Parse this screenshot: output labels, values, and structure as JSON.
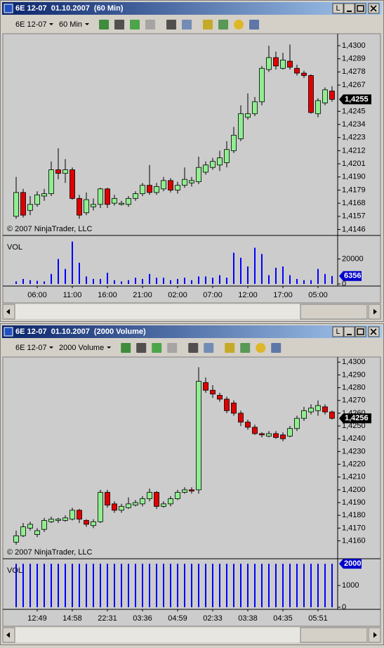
{
  "windows": [
    {
      "title": "6E 12-07  01.10.2007  (60 Min)",
      "lock_button": "L",
      "instrument": "6E 12-07",
      "period": "60 Min",
      "copyright": "© 2007 NinjaTrader, LLC",
      "vol_label": "VOL"
    },
    {
      "title": "6E 12-07  01.10.2007  (2000 Volume)",
      "lock_button": "L",
      "instrument": "6E 12-07",
      "period": "2000 Volume",
      "copyright": "© 2007 NinjaTrader, LLC",
      "vol_label": "VOL"
    }
  ],
  "chart_data": [
    {
      "type": "candlestick",
      "up_color": "#90ee90",
      "down_color": "#e00000",
      "open": [
        1.4157,
        1.4177,
        1.4162,
        1.4167,
        1.4174,
        1.4176,
        1.4196,
        1.4193,
        1.4196,
        1.4172,
        1.416,
        1.4165,
        1.4167,
        1.418,
        1.4168,
        1.4167,
        1.4167,
        1.4172,
        1.4176,
        1.4183,
        1.4177,
        1.418,
        1.4187,
        1.4179,
        1.4183,
        1.4185,
        1.4186,
        1.4194,
        1.4198,
        1.42,
        1.4202,
        1.4212,
        1.4222,
        1.424,
        1.4243,
        1.4253,
        1.428,
        1.429,
        1.4281,
        1.4287,
        1.4281,
        1.4277,
        1.4275,
        1.4243,
        1.4252,
        1.4262
      ],
      "high": [
        1.419,
        1.418,
        1.4174,
        1.4178,
        1.418,
        1.4203,
        1.4214,
        1.4205,
        1.4198,
        1.4175,
        1.4177,
        1.4172,
        1.4181,
        1.4181,
        1.4175,
        1.417,
        1.4174,
        1.4178,
        1.4185,
        1.42,
        1.4185,
        1.419,
        1.4189,
        1.4186,
        1.4198,
        1.419,
        1.4207,
        1.4203,
        1.4206,
        1.4212,
        1.422,
        1.4232,
        1.425,
        1.426,
        1.4257,
        1.4283,
        1.43,
        1.4295,
        1.4294,
        1.4301,
        1.4284,
        1.4279,
        1.4276,
        1.4256,
        1.4265,
        1.4266
      ],
      "low": [
        1.4155,
        1.4156,
        1.4158,
        1.4165,
        1.417,
        1.4174,
        1.4188,
        1.4185,
        1.4171,
        1.4155,
        1.4158,
        1.4162,
        1.4164,
        1.4164,
        1.4166,
        1.4166,
        1.4165,
        1.417,
        1.4174,
        1.4175,
        1.4175,
        1.4178,
        1.4177,
        1.4176,
        1.4181,
        1.4182,
        1.4184,
        1.4192,
        1.4196,
        1.4195,
        1.4198,
        1.421,
        1.422,
        1.4238,
        1.4241,
        1.425,
        1.4278,
        1.428,
        1.428,
        1.428,
        1.4275,
        1.4273,
        1.4243,
        1.424,
        1.425,
        1.4253
      ],
      "close": [
        1.4177,
        1.4158,
        1.4167,
        1.4175,
        1.4176,
        1.4196,
        1.4193,
        1.4196,
        1.4172,
        1.4158,
        1.4171,
        1.4167,
        1.418,
        1.4167,
        1.4172,
        1.4168,
        1.4172,
        1.4176,
        1.4183,
        1.4177,
        1.4182,
        1.4187,
        1.4179,
        1.4183,
        1.4188,
        1.4187,
        1.4198,
        1.42,
        1.4203,
        1.4206,
        1.4213,
        1.4225,
        1.4243,
        1.4243,
        1.4253,
        1.4281,
        1.429,
        1.4283,
        1.4288,
        1.4282,
        1.4277,
        1.4275,
        1.4244,
        1.4254,
        1.4263,
        1.4255
      ],
      "last_label": "1,4255",
      "ylim": [
        1.4141,
        1.431
      ],
      "yticks": [
        {
          "value": 1.4146,
          "label": "1,4146"
        },
        {
          "value": 1.4157,
          "label": "1,4157"
        },
        {
          "value": 1.4168,
          "label": "1,4168"
        },
        {
          "value": 1.4179,
          "label": "1,4179"
        },
        {
          "value": 1.419,
          "label": "1,4190"
        },
        {
          "value": 1.4201,
          "label": "1,4201"
        },
        {
          "value": 1.4212,
          "label": "1,4212"
        },
        {
          "value": 1.4223,
          "label": "1,4223"
        },
        {
          "value": 1.4234,
          "label": "1,4234"
        },
        {
          "value": 1.4245,
          "label": "1,4245"
        },
        {
          "value": 1.4267,
          "label": "1,4267"
        },
        {
          "value": 1.4278,
          "label": "1,4278"
        },
        {
          "value": 1.4289,
          "label": "1,4289"
        },
        {
          "value": 1.43,
          "label": "1,4300"
        }
      ]
    },
    {
      "type": "bar",
      "color": "#0000ff",
      "categories": [
        null,
        null,
        null,
        "06:00",
        null,
        null,
        null,
        null,
        "11:00",
        null,
        null,
        null,
        null,
        "16:00",
        null,
        null,
        null,
        null,
        "21:00",
        null,
        null,
        null,
        null,
        "02:00",
        null,
        null,
        null,
        null,
        "07:00",
        null,
        null,
        null,
        null,
        "12:00",
        null,
        null,
        null,
        null,
        "17:00",
        null,
        null,
        null,
        null,
        "05:00",
        null,
        null
      ],
      "values": [
        2000,
        4000,
        3000,
        2500,
        2000,
        8000,
        20000,
        12000,
        34000,
        17000,
        6000,
        4000,
        4000,
        9000,
        3000,
        2000,
        3000,
        5000,
        4000,
        8000,
        5000,
        5000,
        3000,
        4000,
        5000,
        3000,
        6000,
        6000,
        5000,
        7000,
        5000,
        25000,
        21000,
        14000,
        29000,
        24000,
        7000,
        13000,
        14000,
        7000,
        4000,
        3000,
        3000,
        12000,
        8000,
        6356
      ],
      "ylim": [
        0,
        38300
      ],
      "yticks": [
        0,
        20000
      ]
    },
    {
      "type": "candlestick",
      "up_color": "#90ee90",
      "down_color": "#e00000",
      "open": [
        1.4159,
        1.4164,
        1.417,
        1.4165,
        1.4169,
        1.4175,
        1.4176,
        1.4176,
        1.4177,
        1.4184,
        1.4176,
        1.4172,
        1.4175,
        1.4198,
        1.4189,
        1.4184,
        1.4186,
        1.4188,
        1.4189,
        1.4193,
        1.4198,
        1.4187,
        1.4189,
        1.4193,
        1.4198,
        1.42,
        1.42,
        1.4284,
        1.4278,
        1.4274,
        1.4271,
        1.4268,
        1.426,
        1.4253,
        1.4249,
        1.4244,
        1.4242,
        1.4244,
        1.4243,
        1.4242,
        1.4248,
        1.4256,
        1.4261,
        1.4262,
        1.4265,
        1.4261
      ],
      "high": [
        1.4168,
        1.4174,
        1.4175,
        1.417,
        1.4178,
        1.4179,
        1.4178,
        1.418,
        1.4186,
        1.4185,
        1.4177,
        1.4177,
        1.42,
        1.42,
        1.4191,
        1.4189,
        1.4194,
        1.4192,
        1.4195,
        1.4201,
        1.4199,
        1.4191,
        1.4195,
        1.42,
        1.4202,
        1.4202,
        1.4296,
        1.4288,
        1.4282,
        1.4276,
        1.4273,
        1.427,
        1.4262,
        1.4255,
        1.4251,
        1.4245,
        1.4246,
        1.4246,
        1.4245,
        1.425,
        1.4258,
        1.4265,
        1.4267,
        1.427,
        1.4267,
        1.4262
      ],
      "low": [
        1.4157,
        1.4163,
        1.4168,
        1.4163,
        1.4167,
        1.4174,
        1.4174,
        1.4175,
        1.4176,
        1.4174,
        1.4171,
        1.417,
        1.4174,
        1.4186,
        1.4182,
        1.4182,
        1.4185,
        1.4187,
        1.4187,
        1.4191,
        1.4185,
        1.4186,
        1.4187,
        1.4192,
        1.4197,
        1.4197,
        1.4197,
        1.4276,
        1.4272,
        1.4269,
        1.426,
        1.4258,
        1.425,
        1.4247,
        1.4243,
        1.4241,
        1.4241,
        1.424,
        1.4238,
        1.4241,
        1.4246,
        1.4254,
        1.4259,
        1.4258,
        1.4259,
        1.4255
      ],
      "close": [
        1.4164,
        1.4171,
        1.4173,
        1.4168,
        1.4176,
        1.4177,
        1.4177,
        1.4178,
        1.4184,
        1.4177,
        1.4173,
        1.4175,
        1.4198,
        1.4188,
        1.4184,
        1.4187,
        1.4189,
        1.419,
        1.4193,
        1.4198,
        1.4187,
        1.4189,
        1.4193,
        1.4198,
        1.42,
        1.4199,
        1.4285,
        1.4278,
        1.4275,
        1.4271,
        1.4262,
        1.426,
        1.4253,
        1.4249,
        1.4244,
        1.4243,
        1.4244,
        1.4241,
        1.424,
        1.4248,
        1.4256,
        1.4262,
        1.4264,
        1.4266,
        1.4261,
        1.4256
      ],
      "last_label": "1,4256",
      "ylim": [
        1.4146,
        1.4304
      ],
      "yticks": [
        {
          "value": 1.416,
          "label": "1,4160"
        },
        {
          "value": 1.417,
          "label": "1,4170"
        },
        {
          "value": 1.418,
          "label": "1,4180"
        },
        {
          "value": 1.419,
          "label": "1,4190"
        },
        {
          "value": 1.42,
          "label": "1,4200"
        },
        {
          "value": 1.421,
          "label": "1,4210"
        },
        {
          "value": 1.422,
          "label": "1,4220"
        },
        {
          "value": 1.423,
          "label": "1,4230"
        },
        {
          "value": 1.424,
          "label": "1,4240"
        },
        {
          "value": 1.425,
          "label": "1,4250"
        },
        {
          "value": 1.426,
          "label": "1,4260"
        },
        {
          "value": 1.427,
          "label": "1,4270"
        },
        {
          "value": 1.428,
          "label": "1,4280"
        },
        {
          "value": 1.429,
          "label": "1,4290"
        },
        {
          "value": 1.43,
          "label": "1,4300"
        }
      ]
    },
    {
      "type": "bar",
      "color": "#0000ff",
      "categories": [
        null,
        null,
        null,
        "12:49",
        null,
        null,
        null,
        null,
        "14:58",
        null,
        null,
        null,
        null,
        "22:31",
        null,
        null,
        null,
        null,
        "03:36",
        null,
        null,
        null,
        null,
        "04:59",
        null,
        null,
        null,
        null,
        "02:33",
        null,
        null,
        null,
        null,
        "03:38",
        null,
        null,
        null,
        null,
        "04:35",
        null,
        null,
        null,
        null,
        "05:51",
        null,
        null
      ],
      "values": [
        2000,
        2000,
        2000,
        2000,
        2000,
        2000,
        2000,
        2000,
        2000,
        2000,
        2000,
        2000,
        2000,
        2000,
        2000,
        2000,
        2000,
        2000,
        2000,
        2000,
        2000,
        2000,
        2000,
        2000,
        2000,
        2000,
        2000,
        2000,
        2000,
        2000,
        2000,
        2000,
        2000,
        2000,
        2000,
        2000,
        2000,
        2000,
        2000,
        2000,
        2000,
        2000,
        2000,
        2000,
        2000,
        2000
      ],
      "ylim": [
        0,
        2200
      ],
      "yticks": [
        0,
        1000
      ]
    }
  ]
}
